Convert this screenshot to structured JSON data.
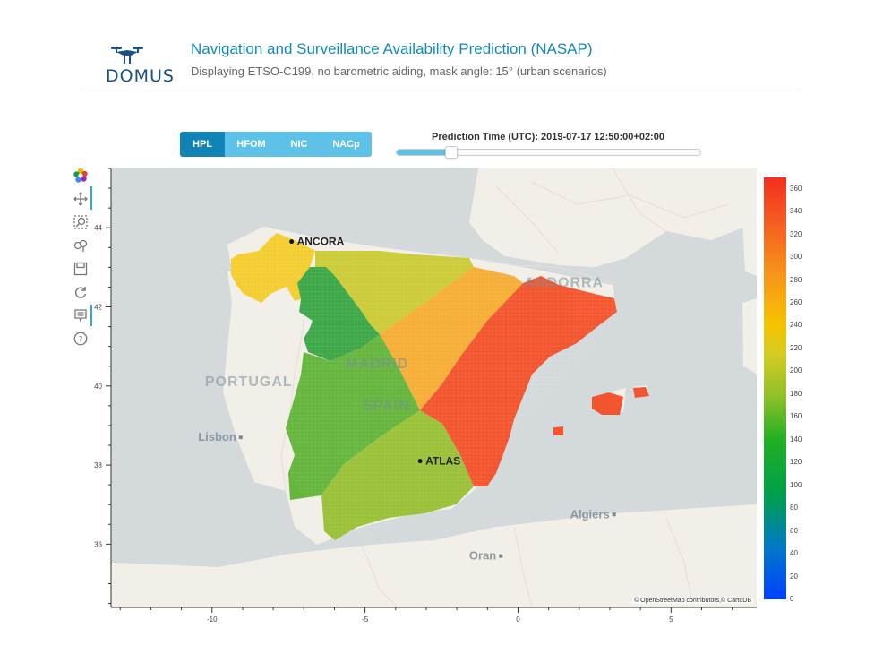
{
  "logo": {
    "text": "DOMUS",
    "icon": "drone-icon"
  },
  "header": {
    "title": "Navigation and Surveillance Availability Prediction (NASAP)",
    "subtitle": "Displaying ETSO-C199, no barometric aiding, mask angle: 15° (urban scenarios)"
  },
  "tabs": [
    {
      "label": "HPL",
      "active": true
    },
    {
      "label": "HFOM",
      "active": false
    },
    {
      "label": "NIC",
      "active": false
    },
    {
      "label": "NACp",
      "active": false
    }
  ],
  "slider": {
    "label": "Prediction Time (UTC): 2019-07-17 12:50:00+02:00",
    "value_fraction": 0.18
  },
  "toolbar": [
    "bokeh-logo-icon",
    "pan-icon",
    "box-zoom-icon",
    "wheel-zoom-icon",
    "save-icon",
    "reset-icon",
    "hover-icon",
    "help-icon"
  ],
  "map": {
    "labels": [
      {
        "text": "ANCORA",
        "lon": -7.4,
        "lat": 43.65,
        "station": true
      },
      {
        "text": "ATLAS",
        "lon": -3.2,
        "lat": 38.1,
        "station": true
      },
      {
        "text": "PORTUGAL",
        "lon": -8.8,
        "lat": 40.0,
        "big": true
      },
      {
        "text": "MADRID",
        "lon": -4.6,
        "lat": 40.45,
        "big": true
      },
      {
        "text": "SPAIN",
        "lon": -4.3,
        "lat": 39.4,
        "big": true
      },
      {
        "text": "ANDORRA",
        "lon": 1.5,
        "lat": 42.5,
        "big": true
      },
      {
        "text": "Lisbon",
        "lon": -9.15,
        "lat": 38.7,
        "city": true
      },
      {
        "text": "Algiers",
        "lon": 3.05,
        "lat": 36.75,
        "city": true
      },
      {
        "text": "Oran",
        "lon": -0.65,
        "lat": 35.7,
        "city": true
      }
    ],
    "attribution": "© OpenStreetMap contributors,© CartoDB",
    "x_range": [
      -13.3,
      7.8
    ],
    "y_range": [
      34.4,
      45.5
    ],
    "x_ticks": [
      -10,
      -5,
      0,
      5
    ],
    "y_ticks": [
      36,
      38,
      40,
      42,
      44
    ]
  },
  "colorbar": {
    "range": [
      0,
      370
    ],
    "ticks": [
      0,
      20,
      40,
      60,
      80,
      100,
      120,
      140,
      160,
      180,
      200,
      220,
      240,
      260,
      280,
      300,
      320,
      340,
      360
    ]
  },
  "colors": {
    "accent": "#1283b6",
    "tab_inactive": "#5ec1e7",
    "sea": "#d4dadc",
    "land": "#f2efe9"
  }
}
